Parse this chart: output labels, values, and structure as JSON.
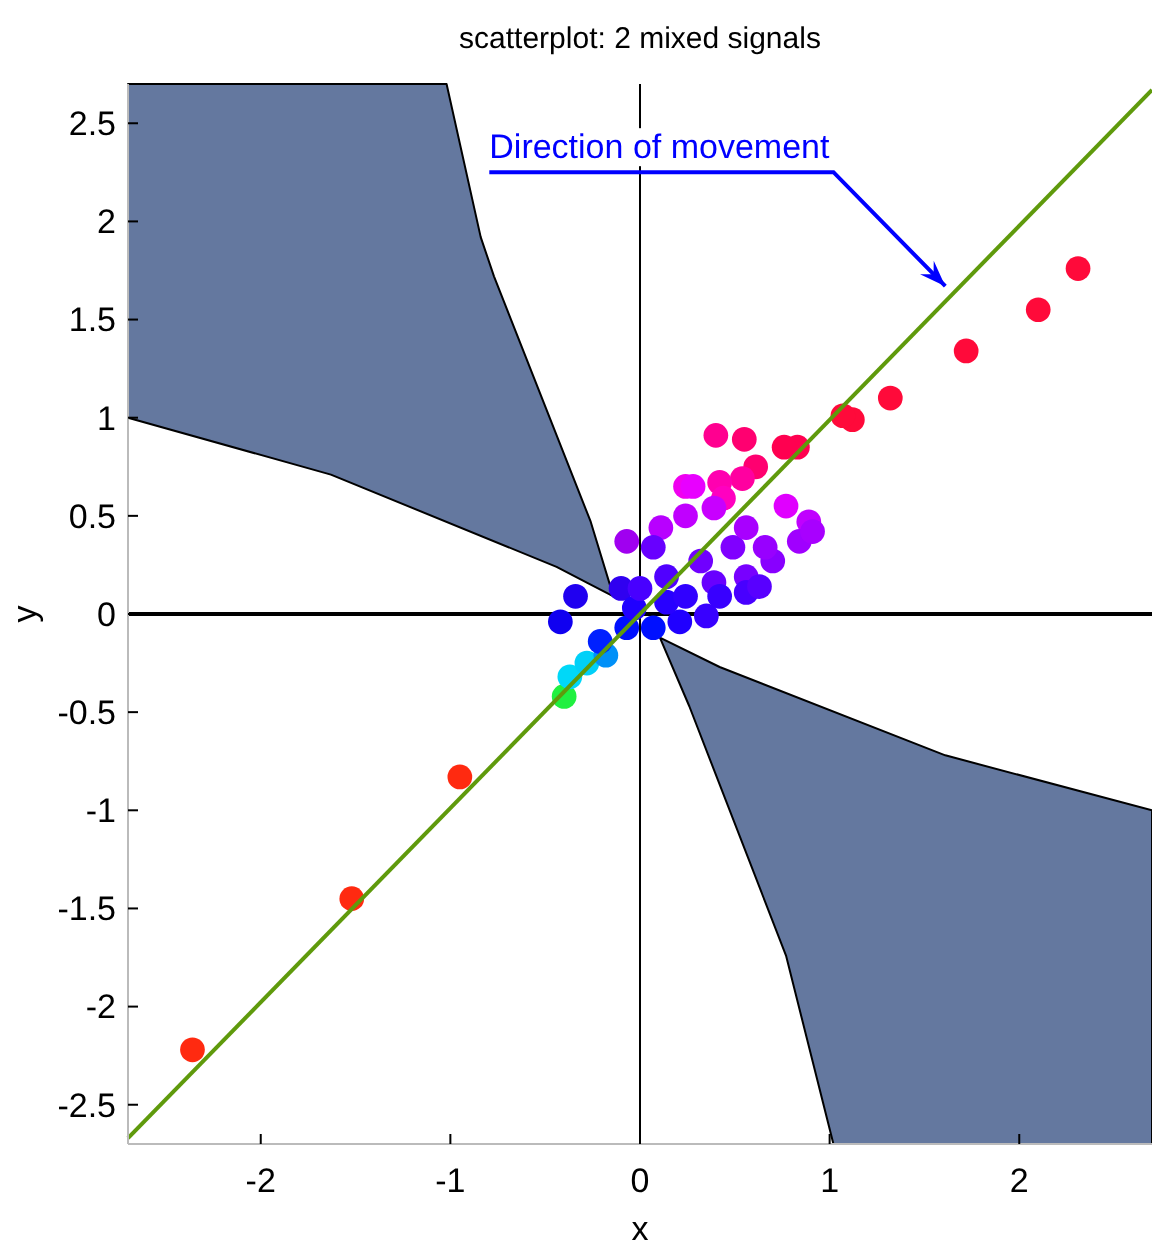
{
  "chart_data": {
    "type": "scatter",
    "title": "scatterplot: 2 mixed signals",
    "xlabel": "x",
    "ylabel": "y",
    "xlim": [
      -2.7,
      2.7
    ],
    "ylim": [
      -2.7,
      2.7
    ],
    "xticks": [
      -2,
      -1,
      0,
      1,
      2
    ],
    "yticks": [
      -2.5,
      -2,
      -1.5,
      -1,
      -0.5,
      0,
      0.5,
      1,
      1.5,
      2,
      2.5
    ],
    "grid": false,
    "annotations": [
      {
        "text": "Direction of movement",
        "x": 1.61,
        "y": 1.67
      }
    ],
    "series": [
      {
        "marker": "circle",
        "x": [
          -2.36,
          -1.52,
          -0.95,
          -0.4,
          2.31,
          2.1,
          1.72,
          1.32,
          1.12,
          1.07,
          0.83,
          0.76,
          0.55,
          0.4,
          0.61,
          0.54,
          0.42,
          0.44,
          0.77,
          0.89,
          0.24,
          -0.42,
          -0.34,
          -0.1,
          -0.37,
          -0.28,
          -0.18,
          -0.21,
          -0.07,
          0.07,
          0.21,
          0.35,
          0.14,
          -0.03,
          0.39,
          0.56,
          0.7,
          0.84,
          0.91,
          0.66,
          0.49,
          0.32,
          0.14,
          0,
          -0.07,
          0.11,
          0.24,
          0.28,
          0.39,
          0.56,
          0.07,
          0.24,
          0.42,
          0.56,
          0.63
        ],
        "values": [
          -2.22,
          -1.45,
          -0.83,
          -0.42,
          1.76,
          1.55,
          1.34,
          1.1,
          0.99,
          1.01,
          0.85,
          0.85,
          0.89,
          0.91,
          0.75,
          0.69,
          0.67,
          0.59,
          0.55,
          0.47,
          0.65,
          -0.04,
          0.09,
          0.13,
          -0.32,
          -0.25,
          -0.21,
          -0.14,
          -0.07,
          -0.07,
          -0.04,
          -0.01,
          0.06,
          0.03,
          0.16,
          0.19,
          0.27,
          0.37,
          0.42,
          0.34,
          0.34,
          0.27,
          0.19,
          0.13,
          0.37,
          0.44,
          0.5,
          0.65,
          0.54,
          0.44,
          0.34,
          0.09,
          0.09,
          0.11,
          0.14
        ],
        "colors": [
          "#ff2a10",
          "#ff2a10",
          "#ff2a10",
          "#20f040",
          "#ff0a3a",
          "#ff0a3a",
          "#ff0a3a",
          "#ff0a3a",
          "#ff0a3a",
          "#ff0a3a",
          "#ff0050",
          "#ff0050",
          "#ff0070",
          "#ff0090",
          "#ff0070",
          "#ff00a0",
          "#ff00b0",
          "#ff00c0",
          "#e000ff",
          "#c000ff",
          "#f000f0",
          "#1000f0",
          "#2000f0",
          "#3000f0",
          "#00d8f8",
          "#00d0f8",
          "#0090f8",
          "#0020ff",
          "#0010ff",
          "#0010ff",
          "#2000ff",
          "#3800ff",
          "#2800ff",
          "#2000ff",
          "#6800ff",
          "#7800ff",
          "#8800ff",
          "#a000ff",
          "#a800ff",
          "#9800ff",
          "#8000ff",
          "#7000ff",
          "#5000ff",
          "#4800ff",
          "#a000f0",
          "#b800ff",
          "#c000ff",
          "#e800ff",
          "#c800ff",
          "#a800ff",
          "#6800ff",
          "#3000ff",
          "#3800ff",
          "#4800ff",
          "#5800ff"
        ]
      },
      {
        "type": "line",
        "color": "#5f9a0c",
        "x": [
          -2.7,
          2.7
        ],
        "values": [
          -2.67,
          2.67
        ]
      }
    ]
  }
}
